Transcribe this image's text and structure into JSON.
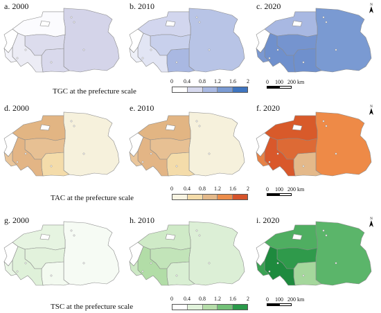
{
  "rows": [
    {
      "caption": "TGC at the prefecture scale",
      "panels": [
        {
          "label": "a. 2000",
          "colors": {
            "A": "#d4d4e9",
            "B": "#fbfbfe",
            "C": "#ffffff",
            "D": "#d9d9ec",
            "E": "#dcdced",
            "F": "#ececf5",
            "G": "#f3f3f9"
          }
        },
        {
          "label": "b. 2010",
          "colors": {
            "A": "#b8c4e6",
            "B": "#d2d6ee",
            "C": "#ffffff",
            "D": "#a9b8e2",
            "E": "#c8d0ec",
            "F": "#e2e5f4",
            "G": "#eef0f8"
          }
        },
        {
          "label": "c. 2020",
          "colors": {
            "A": "#7a9ad2",
            "B": "#a8b8e2",
            "C": "#ffffff",
            "D": "#6f90cd",
            "E": "#7594cf",
            "F": "#6f90cd",
            "G": "#7a98d1"
          }
        }
      ],
      "legend": {
        "colors": [
          "#ffffff",
          "#d7d9ee",
          "#a9b9e3",
          "#7b9bd3",
          "#3f75c0"
        ],
        "ticks": [
          "0",
          "0.4",
          "0.8",
          "1.2",
          "1.6",
          "2"
        ]
      }
    },
    {
      "caption": "TAC at the prefecture scale",
      "panels": [
        {
          "label": "d. 2000",
          "colors": {
            "A": "#f6f1dc",
            "B": "#e2b583",
            "C": "#ffffff",
            "D": "#f4dcaa",
            "E": "#e7c093",
            "F": "#e3b585",
            "G": "#eac69b"
          }
        },
        {
          "label": "e. 2010",
          "colors": {
            "A": "#f6f1dc",
            "B": "#e2b583",
            "C": "#ffffff",
            "D": "#f4dcaa",
            "E": "#e7c093",
            "F": "#e3b585",
            "G": "#eac69b"
          }
        },
        {
          "label": "f. 2020",
          "colors": {
            "A": "#ee8a47",
            "B": "#d85a2a",
            "C": "#ffffff",
            "D": "#e4b98a",
            "E": "#dd6a35",
            "F": "#d9582b",
            "G": "#e78246"
          }
        }
      ],
      "legend": {
        "colors": [
          "#f8f4e2",
          "#f4dcaa",
          "#e4b98a",
          "#ec8d4b",
          "#d6532a"
        ],
        "ticks": [
          "0",
          "0.4",
          "0.8",
          "1.2",
          "1.6",
          "2"
        ]
      }
    },
    {
      "caption": "TSC at the prefecture scale",
      "panels": [
        {
          "label": "g. 2000",
          "colors": {
            "A": "#f6fbf4",
            "B": "#e6f4e1",
            "C": "#ffffff",
            "D": "#f3faf0",
            "E": "#e2f2dc",
            "F": "#dff1d9",
            "G": "#eaf6e6"
          }
        },
        {
          "label": "h. 2010",
          "colors": {
            "A": "#dcefd6",
            "B": "#cfeac7",
            "C": "#ffffff",
            "D": "#d9efd3",
            "E": "#c2e4b9",
            "F": "#b2dda7",
            "G": "#cde9c5"
          }
        },
        {
          "label": "i. 2020",
          "colors": {
            "A": "#5bb56a",
            "B": "#4fae61",
            "C": "#ffffff",
            "D": "#a5d79c",
            "E": "#2f9a4b",
            "F": "#1e8a3e",
            "G": "#3aa253"
          }
        }
      ],
      "legend": {
        "colors": [
          "#ffffff",
          "#e2f3dc",
          "#b6deaa",
          "#73c178",
          "#2a9a4a"
        ],
        "ticks": [
          "0",
          "0.4",
          "0.8",
          "1.2",
          "1.6",
          "2"
        ]
      }
    }
  ],
  "north_arrow": {
    "letter": "N"
  },
  "scale_bar": {
    "ticks": [
      "0",
      "100",
      "200 km"
    ]
  }
}
